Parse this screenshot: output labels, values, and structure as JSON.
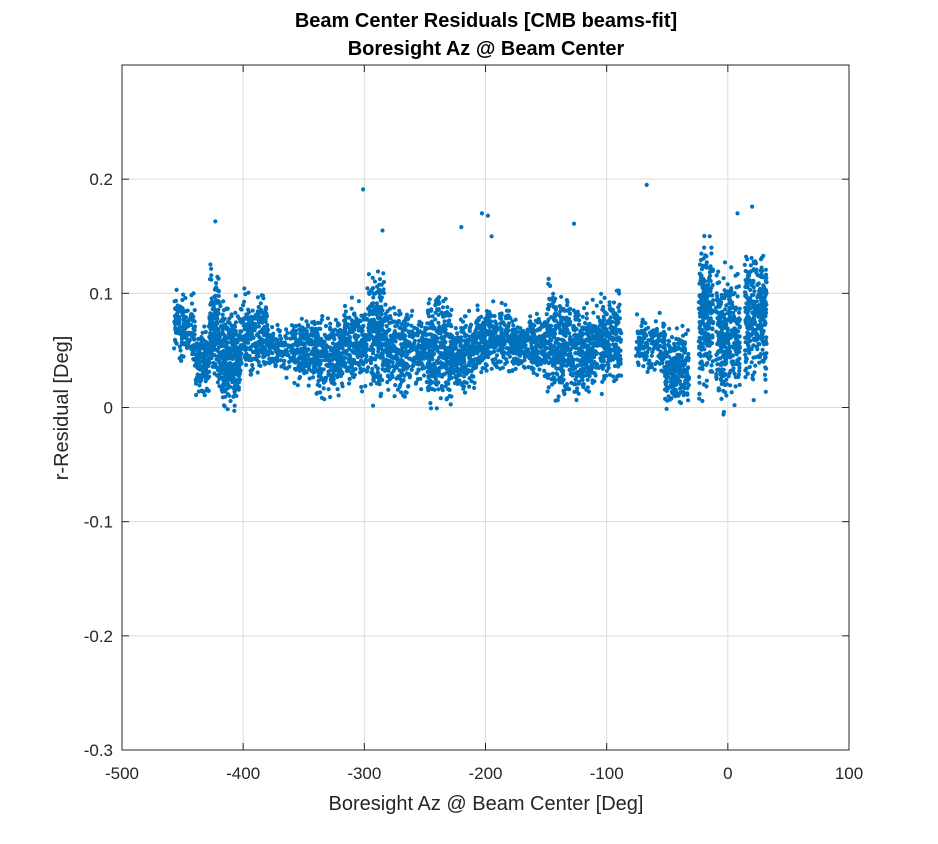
{
  "chart_data": {
    "type": "scatter",
    "title": "Beam Center Residuals [CMB beams-fit]",
    "subtitle": "Boresight Az @ Beam Center",
    "xlabel": "Boresight Az @ Beam Center [Deg]",
    "ylabel": "r-Residual [Deg]",
    "xlim": [
      -500,
      100
    ],
    "ylim": [
      -0.3,
      0.3
    ],
    "xticks": [
      -500,
      -400,
      -300,
      -200,
      -100,
      0,
      100
    ],
    "yticks": [
      -0.3,
      -0.2,
      -0.1,
      0,
      0.1,
      0.2
    ],
    "xtick_labels": [
      "-500",
      "-400",
      "-300",
      "-200",
      "-100",
      "0",
      "100"
    ],
    "ytick_labels": [
      "-0.3",
      "-0.2",
      "-0.1",
      "0",
      "0.1",
      "0.2"
    ],
    "grid": true,
    "marker_color": "#0072BD",
    "clusters": [
      {
        "x": [
          -457,
          -440
        ],
        "y": [
          0.04,
          0.1
        ],
        "n": 160
      },
      {
        "x": [
          -440,
          -428
        ],
        "y": [
          0.01,
          0.07
        ],
        "n": 140
      },
      {
        "x": [
          -428,
          -420
        ],
        "y": [
          0.02,
          0.12
        ],
        "n": 150
      },
      {
        "x": [
          -420,
          -402
        ],
        "y": [
          0.0,
          0.09
        ],
        "n": 320
      },
      {
        "x": [
          -402,
          -380
        ],
        "y": [
          0.03,
          0.1
        ],
        "n": 240
      },
      {
        "x": [
          -380,
          -360
        ],
        "y": [
          0.03,
          0.07
        ],
        "n": 140
      },
      {
        "x": [
          -360,
          -340
        ],
        "y": [
          0.02,
          0.08
        ],
        "n": 220
      },
      {
        "x": [
          -340,
          -318
        ],
        "y": [
          0.01,
          0.08
        ],
        "n": 240
      },
      {
        "x": [
          -318,
          -298
        ],
        "y": [
          0.02,
          0.09
        ],
        "n": 220
      },
      {
        "x": [
          -298,
          -282
        ],
        "y": [
          0.01,
          0.12
        ],
        "n": 240
      },
      {
        "x": [
          -282,
          -262
        ],
        "y": [
          0.01,
          0.09
        ],
        "n": 220
      },
      {
        "x": [
          -262,
          -248
        ],
        "y": [
          0.02,
          0.08
        ],
        "n": 120
      },
      {
        "x": [
          -248,
          -228
        ],
        "y": [
          0.0,
          0.1
        ],
        "n": 320
      },
      {
        "x": [
          -228,
          -208
        ],
        "y": [
          0.01,
          0.08
        ],
        "n": 220
      },
      {
        "x": [
          -208,
          -180
        ],
        "y": [
          0.03,
          0.09
        ],
        "n": 300
      },
      {
        "x": [
          -180,
          -150
        ],
        "y": [
          0.03,
          0.08
        ],
        "n": 280
      },
      {
        "x": [
          -150,
          -130
        ],
        "y": [
          0.01,
          0.11
        ],
        "n": 280
      },
      {
        "x": [
          -130,
          -110
        ],
        "y": [
          0.01,
          0.09
        ],
        "n": 260
      },
      {
        "x": [
          -110,
          -88
        ],
        "y": [
          0.02,
          0.1
        ],
        "n": 260
      },
      {
        "x": [
          -76,
          -52
        ],
        "y": [
          0.03,
          0.08
        ],
        "n": 160
      },
      {
        "x": [
          -52,
          -32
        ],
        "y": [
          0.0,
          0.07
        ],
        "n": 260
      },
      {
        "x": [
          -24,
          -12
        ],
        "y": [
          0.01,
          0.14
        ],
        "n": 260
      },
      {
        "x": [
          -10,
          10
        ],
        "y": [
          0.0,
          0.12
        ],
        "n": 300
      },
      {
        "x": [
          14,
          32
        ],
        "y": [
          0.02,
          0.14
        ],
        "n": 300
      }
    ],
    "outliers": [
      {
        "x": -301,
        "y": 0.191
      },
      {
        "x": -67,
        "y": 0.195
      },
      {
        "x": -423,
        "y": 0.163
      },
      {
        "x": -203,
        "y": 0.17
      },
      {
        "x": -198,
        "y": 0.168
      },
      {
        "x": 8,
        "y": 0.17
      },
      {
        "x": 20,
        "y": 0.176
      },
      {
        "x": -127,
        "y": 0.161
      },
      {
        "x": -220,
        "y": 0.158
      },
      {
        "x": -285,
        "y": 0.155
      },
      {
        "x": -195,
        "y": 0.15
      },
      {
        "x": -15,
        "y": 0.15
      }
    ]
  }
}
